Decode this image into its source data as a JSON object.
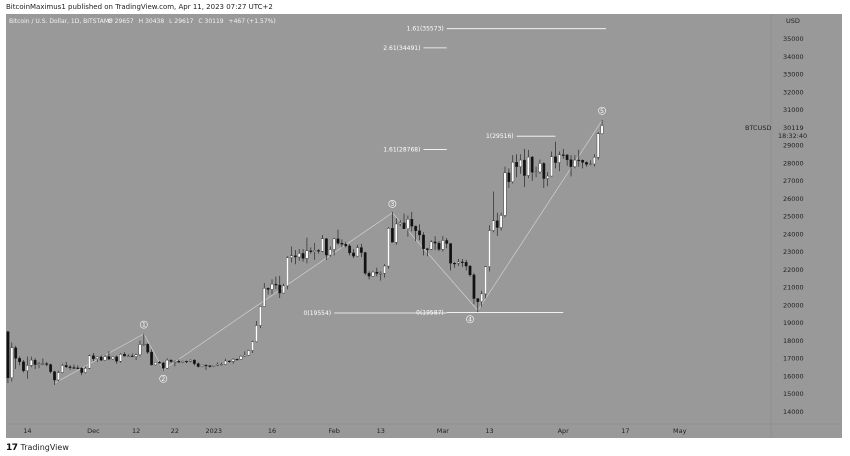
{
  "caption": "BitcoinMaximus1 published on TradingView.com, Apr 11, 2023 07:27 UTC+2",
  "footer": {
    "logo_mark": "17",
    "brand": "TradingView"
  },
  "header": {
    "symbol_title": "Bitcoin / U.S. Dollar, 1D, BITSTAMP",
    "ohlc": [
      {
        "k": "O",
        "v": "29657"
      },
      {
        "k": "H",
        "v": "30438"
      },
      {
        "k": "L",
        "v": "29617"
      },
      {
        "k": "C",
        "v": "30119"
      }
    ],
    "change": "+467 (+1.57%)"
  },
  "price_tag": {
    "symbol": "BTCUSD",
    "price": "30119",
    "countdown": "18:32:40"
  },
  "colors": {
    "background": "#999999",
    "bull": "#ffffff",
    "bear": "#111111",
    "line": "#ffffff",
    "wave": "#d0d0d0"
  },
  "chart_data": {
    "type": "candlestick",
    "axis_currency_label": "USD",
    "ylim": [
      13300,
      36400
    ],
    "y_ticks": [
      14000,
      15000,
      16000,
      17000,
      18000,
      19000,
      20000,
      21000,
      22000,
      23000,
      24000,
      25000,
      26000,
      27000,
      28000,
      29000,
      30000,
      31000,
      32000,
      33000,
      34000,
      35000
    ],
    "x_range": [
      "2022-11-09",
      "2023-05-25"
    ],
    "x_ticks": [
      {
        "date": "2022-11-14",
        "label": "14"
      },
      {
        "date": "2022-12-01",
        "label": "Dec"
      },
      {
        "date": "2022-12-12",
        "label": "12"
      },
      {
        "date": "2022-12-22",
        "label": "22"
      },
      {
        "date": "2023-01-01",
        "label": "2023"
      },
      {
        "date": "2023-01-16",
        "label": "16"
      },
      {
        "date": "2023-02-01",
        "label": "Feb"
      },
      {
        "date": "2023-02-13",
        "label": "13"
      },
      {
        "date": "2023-03-01",
        "label": "Mar"
      },
      {
        "date": "2023-03-13",
        "label": "13"
      },
      {
        "date": "2023-04-01",
        "label": "Apr"
      },
      {
        "date": "2023-04-17",
        "label": "17"
      },
      {
        "date": "2023-05-01",
        "label": "May"
      }
    ],
    "candles": [
      [
        "2022-11-09",
        18500,
        18550,
        15600,
        15900
      ],
      [
        "2022-11-10",
        15900,
        17900,
        15700,
        17600
      ],
      [
        "2022-11-11",
        17600,
        17700,
        16400,
        17000
      ],
      [
        "2022-11-12",
        17000,
        17100,
        16600,
        16800
      ],
      [
        "2022-11-13",
        16800,
        16900,
        16200,
        16300
      ],
      [
        "2022-11-14",
        16300,
        17100,
        15850,
        16600
      ],
      [
        "2022-11-15",
        16600,
        17100,
        16500,
        16900
      ],
      [
        "2022-11-16",
        16900,
        17000,
        16400,
        16650
      ],
      [
        "2022-11-17",
        16650,
        16800,
        16450,
        16700
      ],
      [
        "2022-11-18",
        16700,
        17000,
        16600,
        16700
      ],
      [
        "2022-11-19",
        16700,
        16800,
        16550,
        16650
      ],
      [
        "2022-11-20",
        16650,
        16700,
        16150,
        16250
      ],
      [
        "2022-11-21",
        16250,
        16300,
        15500,
        15780
      ],
      [
        "2022-11-22",
        15780,
        16300,
        15700,
        16200
      ],
      [
        "2022-11-23",
        16200,
        16700,
        16150,
        16600
      ],
      [
        "2022-11-24",
        16600,
        16800,
        16450,
        16520
      ],
      [
        "2022-11-25",
        16520,
        16620,
        16350,
        16480
      ],
      [
        "2022-11-26",
        16480,
        16650,
        16400,
        16460
      ],
      [
        "2022-11-27",
        16460,
        16600,
        16400,
        16450
      ],
      [
        "2022-11-28",
        16450,
        16500,
        16050,
        16200
      ],
      [
        "2022-11-29",
        16200,
        16550,
        16150,
        16440
      ],
      [
        "2022-11-30",
        16440,
        17200,
        16400,
        17150
      ],
      [
        "2022-12-01",
        17150,
        17300,
        16850,
        16980
      ],
      [
        "2022-12-02",
        16980,
        17100,
        16800,
        17080
      ],
      [
        "2022-12-03",
        17080,
        17150,
        16850,
        16900
      ],
      [
        "2022-12-04",
        16900,
        17200,
        16880,
        17100
      ],
      [
        "2022-12-05",
        17100,
        17400,
        16900,
        16960
      ],
      [
        "2022-12-06",
        16960,
        17100,
        16920,
        17080
      ],
      [
        "2022-12-07",
        17080,
        17150,
        16700,
        16840
      ],
      [
        "2022-12-08",
        16840,
        17300,
        16760,
        17230
      ],
      [
        "2022-12-09",
        17230,
        17350,
        17100,
        17130
      ],
      [
        "2022-12-10",
        17130,
        17220,
        17090,
        17130
      ],
      [
        "2022-12-11",
        17130,
        17270,
        17070,
        17100
      ],
      [
        "2022-12-12",
        17100,
        17250,
        16900,
        17200
      ],
      [
        "2022-12-13",
        17200,
        18000,
        17100,
        17780
      ],
      [
        "2022-12-14",
        17780,
        18400,
        17700,
        17800
      ],
      [
        "2022-12-15",
        17800,
        17850,
        17250,
        17350
      ],
      [
        "2022-12-16",
        17350,
        17500,
        16600,
        16630
      ],
      [
        "2022-12-17",
        16630,
        16800,
        16600,
        16780
      ],
      [
        "2022-12-18",
        16780,
        16850,
        16700,
        16740
      ],
      [
        "2022-12-19",
        16740,
        16800,
        16300,
        16440
      ],
      [
        "2022-12-20",
        16440,
        17000,
        16400,
        16900
      ],
      [
        "2022-12-21",
        16900,
        16950,
        16750,
        16820
      ],
      [
        "2022-12-22",
        16820,
        16880,
        16550,
        16830
      ],
      [
        "2022-12-23",
        16830,
        16950,
        16750,
        16780
      ],
      [
        "2022-12-24",
        16780,
        16870,
        16750,
        16840
      ],
      [
        "2022-12-25",
        16840,
        16870,
        16730,
        16830
      ],
      [
        "2022-12-26",
        16830,
        16940,
        16780,
        16900
      ],
      [
        "2022-12-27",
        16900,
        16950,
        16600,
        16700
      ],
      [
        "2022-12-28",
        16700,
        16770,
        16480,
        16540
      ],
      [
        "2022-12-29",
        16540,
        16650,
        16500,
        16620
      ],
      [
        "2022-12-30",
        16620,
        16650,
        16350,
        16580
      ],
      [
        "2022-12-31",
        16580,
        16630,
        16480,
        16540
      ],
      [
        "2023-01-01",
        16540,
        16630,
        16500,
        16610
      ],
      [
        "2023-01-02",
        16610,
        16780,
        16560,
        16670
      ],
      [
        "2023-01-03",
        16670,
        16760,
        16600,
        16670
      ],
      [
        "2023-01-04",
        16670,
        16980,
        16650,
        16850
      ],
      [
        "2023-01-05",
        16850,
        16880,
        16750,
        16830
      ],
      [
        "2023-01-06",
        16830,
        17020,
        16700,
        16950
      ],
      [
        "2023-01-07",
        16950,
        16980,
        16900,
        16940
      ],
      [
        "2023-01-08",
        16940,
        17170,
        16910,
        17120
      ],
      [
        "2023-01-09",
        17120,
        17390,
        17100,
        17180
      ],
      [
        "2023-01-10",
        17180,
        17480,
        17150,
        17440
      ],
      [
        "2023-01-11",
        17440,
        17990,
        17300,
        17940
      ],
      [
        "2023-01-12",
        17940,
        19100,
        17900,
        18850
      ],
      [
        "2023-01-13",
        18850,
        19950,
        18700,
        19920
      ],
      [
        "2023-01-14",
        19920,
        21250,
        19900,
        20950
      ],
      [
        "2023-01-15",
        20950,
        21000,
        20600,
        20880
      ],
      [
        "2023-01-16",
        20880,
        21450,
        20600,
        21180
      ],
      [
        "2023-01-17",
        21180,
        21600,
        20900,
        21130
      ],
      [
        "2023-01-18",
        21130,
        21650,
        20400,
        20680
      ],
      [
        "2023-01-19",
        20680,
        21200,
        20650,
        21080
      ],
      [
        "2023-01-20",
        21080,
        22750,
        20900,
        22670
      ],
      [
        "2023-01-21",
        22670,
        23300,
        22400,
        22780
      ],
      [
        "2023-01-22",
        22780,
        23100,
        22300,
        22710
      ],
      [
        "2023-01-23",
        22710,
        23150,
        22500,
        22910
      ],
      [
        "2023-01-24",
        22910,
        23150,
        22450,
        22630
      ],
      [
        "2023-01-25",
        22630,
        23800,
        22350,
        23060
      ],
      [
        "2023-01-26",
        23060,
        23250,
        22900,
        23010
      ],
      [
        "2023-01-27",
        23010,
        23500,
        22550,
        23080
      ],
      [
        "2023-01-28",
        23080,
        23150,
        22900,
        23030
      ],
      [
        "2023-01-29",
        23030,
        23950,
        22980,
        23740
      ],
      [
        "2023-01-30",
        23740,
        23780,
        22550,
        22820
      ],
      [
        "2023-01-31",
        22820,
        23300,
        22720,
        23130
      ],
      [
        "2023-02-01",
        23130,
        23780,
        22800,
        23730
      ],
      [
        "2023-02-02",
        23730,
        24250,
        23400,
        23490
      ],
      [
        "2023-02-03",
        23490,
        23700,
        23250,
        23430
      ],
      [
        "2023-02-04",
        23430,
        23550,
        23250,
        23330
      ],
      [
        "2023-02-05",
        23330,
        23430,
        22800,
        22940
      ],
      [
        "2023-02-06",
        22940,
        23150,
        22650,
        22760
      ],
      [
        "2023-02-07",
        22760,
        23400,
        22740,
        23240
      ],
      [
        "2023-02-08",
        23240,
        23450,
        22700,
        22960
      ],
      [
        "2023-02-09",
        22960,
        23000,
        21700,
        21800
      ],
      [
        "2023-02-10",
        21800,
        21900,
        21450,
        21630
      ],
      [
        "2023-02-11",
        21630,
        21900,
        21600,
        21860
      ],
      [
        "2023-02-12",
        21860,
        22100,
        21620,
        21780
      ],
      [
        "2023-02-13",
        21780,
        21900,
        21380,
        21790
      ],
      [
        "2023-02-14",
        21790,
        22300,
        21550,
        22200
      ],
      [
        "2023-02-15",
        22200,
        24400,
        22050,
        24330
      ],
      [
        "2023-02-16",
        24330,
        25250,
        23550,
        23540
      ],
      [
        "2023-02-17",
        23540,
        24900,
        23400,
        24570
      ],
      [
        "2023-02-18",
        24570,
        24800,
        24450,
        24630
      ],
      [
        "2023-02-19",
        24630,
        25150,
        24300,
        24300
      ],
      [
        "2023-02-20",
        24300,
        25050,
        23850,
        24840
      ],
      [
        "2023-02-21",
        24840,
        25250,
        24150,
        24450
      ],
      [
        "2023-02-22",
        24450,
        24480,
        23600,
        24190
      ],
      [
        "2023-02-23",
        24190,
        24550,
        23650,
        23950
      ],
      [
        "2023-02-24",
        23950,
        24100,
        22800,
        23170
      ],
      [
        "2023-02-25",
        23170,
        23220,
        22750,
        23150
      ],
      [
        "2023-02-26",
        23150,
        23650,
        23100,
        23560
      ],
      [
        "2023-02-27",
        23560,
        23880,
        23100,
        23490
      ],
      [
        "2023-02-28",
        23490,
        23600,
        23050,
        23140
      ],
      [
        "2023-03-01",
        23140,
        23900,
        23020,
        23640
      ],
      [
        "2023-03-02",
        23640,
        23780,
        23200,
        23470
      ],
      [
        "2023-03-03",
        23470,
        23480,
        21950,
        22360
      ],
      [
        "2023-03-04",
        22360,
        22420,
        22100,
        22350
      ],
      [
        "2023-03-05",
        22350,
        22600,
        22200,
        22430
      ],
      [
        "2023-03-06",
        22430,
        22600,
        22150,
        22410
      ],
      [
        "2023-03-07",
        22410,
        22550,
        21950,
        22200
      ],
      [
        "2023-03-08",
        22200,
        22250,
        21600,
        21700
      ],
      [
        "2023-03-09",
        21700,
        21800,
        20050,
        20370
      ],
      [
        "2023-03-10",
        20370,
        20370,
        19600,
        20190
      ],
      [
        "2023-03-11",
        20190,
        20800,
        19900,
        20630
      ],
      [
        "2023-03-12",
        20630,
        22200,
        20380,
        22160
      ],
      [
        "2023-03-13",
        22160,
        24500,
        21900,
        24200
      ],
      [
        "2023-03-14",
        24200,
        26400,
        24100,
        24750
      ],
      [
        "2023-03-15",
        24750,
        25200,
        23900,
        24370
      ],
      [
        "2023-03-16",
        24370,
        25200,
        24200,
        25050
      ],
      [
        "2023-03-17",
        25050,
        27800,
        24950,
        27450
      ],
      [
        "2023-03-18",
        27450,
        27700,
        26600,
        26950
      ],
      [
        "2023-03-19",
        26950,
        28450,
        26850,
        28050
      ],
      [
        "2023-03-20",
        28050,
        28500,
        27200,
        27800
      ],
      [
        "2023-03-21",
        27800,
        28500,
        27400,
        28170
      ],
      [
        "2023-03-22",
        28170,
        28800,
        26650,
        27300
      ],
      [
        "2023-03-23",
        27300,
        28750,
        27150,
        28340
      ],
      [
        "2023-03-24",
        28340,
        28400,
        27000,
        27480
      ],
      [
        "2023-03-25",
        27480,
        27800,
        27200,
        27500
      ],
      [
        "2023-03-26",
        27500,
        28200,
        27400,
        27980
      ],
      [
        "2023-03-27",
        27980,
        28050,
        26600,
        27130
      ],
      [
        "2023-03-28",
        27130,
        27500,
        26700,
        27270
      ],
      [
        "2023-03-29",
        27270,
        28650,
        27250,
        28360
      ],
      [
        "2023-03-30",
        28360,
        29200,
        27700,
        28030
      ],
      [
        "2023-03-31",
        28030,
        28650,
        27550,
        28470
      ],
      [
        "2023-04-01",
        28470,
        28800,
        28250,
        28460
      ],
      [
        "2023-04-02",
        28460,
        28500,
        27850,
        28190
      ],
      [
        "2023-04-03",
        28190,
        28450,
        27250,
        27800
      ],
      [
        "2023-04-04",
        27800,
        28450,
        27700,
        28170
      ],
      [
        "2023-04-05",
        28170,
        28750,
        27800,
        28160
      ],
      [
        "2023-04-06",
        28160,
        28200,
        27700,
        28040
      ],
      [
        "2023-04-07",
        28040,
        28100,
        27800,
        27930
      ],
      [
        "2023-04-08",
        27930,
        28150,
        27870,
        27950
      ],
      [
        "2023-04-09",
        27950,
        28500,
        27800,
        28330
      ],
      [
        "2023-04-10",
        28330,
        29750,
        28200,
        29650
      ],
      [
        "2023-04-11",
        29657,
        30438,
        29617,
        30119
      ]
    ],
    "levels": [
      {
        "label": "1.61(35573)",
        "value": 35573,
        "x_start": "2023-03-02",
        "x_end": "2023-04-12"
      },
      {
        "label": "2.61(34491)",
        "value": 34491,
        "x_start": "2023-02-24",
        "x_end": "2023-03-02"
      },
      {
        "label": "1(29516)",
        "value": 29516,
        "x_start": "2023-03-20",
        "x_end": "2023-03-30"
      },
      {
        "label": "1.61(28768)",
        "value": 28768,
        "x_start": "2023-02-24",
        "x_end": "2023-03-02"
      },
      {
        "label": "0(19554)",
        "value": 19554,
        "x_start": "2023-02-01",
        "x_end": "2023-03-02"
      },
      {
        "label": "0(19587)",
        "value": 19587,
        "x_start": "2023-03-02",
        "x_end": "2023-04-01"
      }
    ],
    "wave_path": [
      [
        "2022-11-21",
        15600
      ],
      [
        "2022-12-14",
        18380
      ],
      [
        "2022-12-19",
        16350
      ],
      [
        "2023-02-16",
        25200
      ],
      [
        "2023-03-10",
        19700
      ],
      [
        "2023-04-11",
        30400
      ]
    ],
    "wave_labels": [
      {
        "label": "1",
        "date": "2022-12-14",
        "value": 18900
      },
      {
        "label": "2",
        "date": "2022-12-19",
        "value": 15850
      },
      {
        "label": "3",
        "date": "2023-02-16",
        "value": 25700
      },
      {
        "label": "4",
        "date": "2023-03-08",
        "value": 19200
      },
      {
        "label": "5",
        "date": "2023-04-11",
        "value": 30950
      }
    ]
  }
}
